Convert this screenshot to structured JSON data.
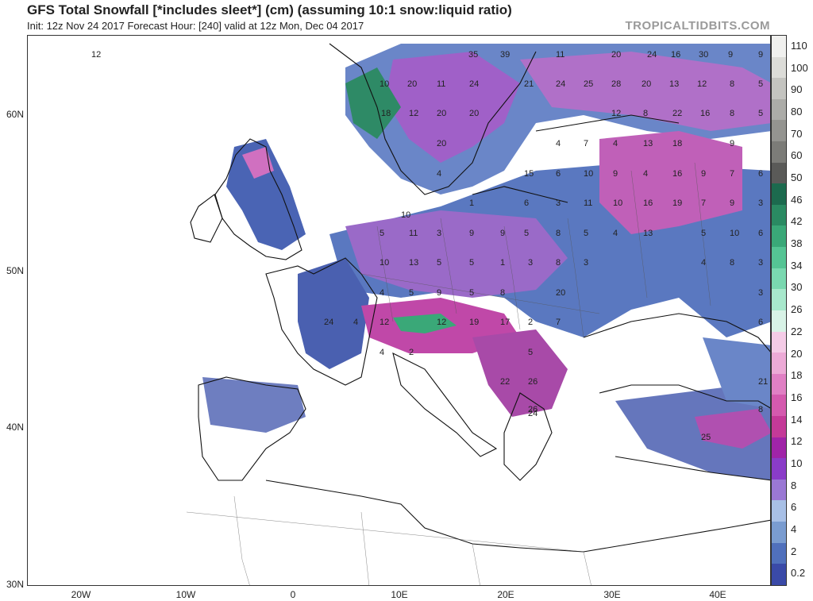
{
  "header": {
    "title": "GFS Total Snowfall [*includes sleet*] (cm) (assuming 10:1 snow:liquid ratio)",
    "subtitle": "Init: 12z Nov 24 2017   Forecast Hour: [240]   valid at 12z Mon, Dec 04 2017",
    "brand": "TROPICALTIDBITS.COM"
  },
  "axes": {
    "lat_labels": [
      "60N",
      "50N",
      "40N",
      "30N"
    ],
    "lon_labels": [
      "20W",
      "10W",
      "0",
      "10E",
      "20E",
      "30E",
      "40E"
    ]
  },
  "colorbar": {
    "labels": [
      "110",
      "100",
      "90",
      "80",
      "70",
      "60",
      "50",
      "46",
      "42",
      "38",
      "34",
      "30",
      "26",
      "22",
      "20",
      "18",
      "16",
      "14",
      "12",
      "10",
      "8",
      "6",
      "4",
      "2",
      "0.2"
    ],
    "colors": [
      "#f0f0ee",
      "#dcdcd8",
      "#c4c4c0",
      "#acaca8",
      "#949490",
      "#7c7c78",
      "#5a5a58",
      "#1c6a4e",
      "#2a8a62",
      "#3aa878",
      "#55c494",
      "#7ad8b0",
      "#a8e8cc",
      "#d8f2e6",
      "#f4cbe6",
      "#ecaad6",
      "#e080c4",
      "#d45aae",
      "#c43a98",
      "#a024a8",
      "#8a3cc8",
      "#9a78d4",
      "#a8c0e6",
      "#7a9cd0",
      "#5070bc",
      "#3a4aa8"
    ]
  },
  "map_values": [
    {
      "v": "12"
    },
    {
      "v": "35"
    },
    {
      "v": "39"
    },
    {
      "v": "11"
    },
    {
      "v": "20"
    },
    {
      "v": "24"
    },
    {
      "v": "16"
    },
    {
      "v": "30"
    },
    {
      "v": "9"
    },
    {
      "v": "9"
    },
    {
      "v": "10"
    },
    {
      "v": "20"
    },
    {
      "v": "11"
    },
    {
      "v": "24"
    },
    {
      "v": "21"
    },
    {
      "v": "24"
    },
    {
      "v": "25"
    },
    {
      "v": "28"
    },
    {
      "v": "20"
    },
    {
      "v": "13"
    },
    {
      "v": "12"
    },
    {
      "v": "8"
    },
    {
      "v": "5"
    },
    {
      "v": "18"
    },
    {
      "v": "12"
    },
    {
      "v": "20"
    },
    {
      "v": "20"
    },
    {
      "v": "12"
    },
    {
      "v": "8"
    },
    {
      "v": "22"
    },
    {
      "v": "16"
    },
    {
      "v": "8"
    },
    {
      "v": "5"
    },
    {
      "v": "20"
    },
    {
      "v": "4"
    },
    {
      "v": "7"
    },
    {
      "v": "4"
    },
    {
      "v": "13"
    },
    {
      "v": "18"
    },
    {
      "v": "9"
    },
    {
      "v": "4"
    },
    {
      "v": "15"
    },
    {
      "v": "6"
    },
    {
      "v": "10"
    },
    {
      "v": "9"
    },
    {
      "v": "4"
    },
    {
      "v": "16"
    },
    {
      "v": "9"
    },
    {
      "v": "7"
    },
    {
      "v": "6"
    },
    {
      "v": "1"
    },
    {
      "v": "6"
    },
    {
      "v": "3"
    },
    {
      "v": "11"
    },
    {
      "v": "10"
    },
    {
      "v": "16"
    },
    {
      "v": "19"
    },
    {
      "v": "7"
    },
    {
      "v": "9"
    },
    {
      "v": "3"
    },
    {
      "v": "5"
    },
    {
      "v": "11"
    },
    {
      "v": "3"
    },
    {
      "v": "9"
    },
    {
      "v": "9"
    },
    {
      "v": "5"
    },
    {
      "v": "8"
    },
    {
      "v": "5"
    },
    {
      "v": "4"
    },
    {
      "v": "13"
    },
    {
      "v": "5"
    },
    {
      "v": "10"
    },
    {
      "v": "6"
    },
    {
      "v": "10"
    },
    {
      "v": "13"
    },
    {
      "v": "5"
    },
    {
      "v": "5"
    },
    {
      "v": "1"
    },
    {
      "v": "3"
    },
    {
      "v": "8"
    },
    {
      "v": "3"
    },
    {
      "v": "4"
    },
    {
      "v": "8"
    },
    {
      "v": "3"
    },
    {
      "v": "4"
    },
    {
      "v": "5"
    },
    {
      "v": "9"
    },
    {
      "v": "5"
    },
    {
      "v": "8"
    },
    {
      "v": "20"
    },
    {
      "v": "3"
    },
    {
      "v": "24"
    },
    {
      "v": "4"
    },
    {
      "v": "12"
    },
    {
      "v": "12"
    },
    {
      "v": "19"
    },
    {
      "v": "17"
    },
    {
      "v": "2"
    },
    {
      "v": "7"
    },
    {
      "v": "6"
    },
    {
      "v": "4"
    },
    {
      "v": "2"
    },
    {
      "v": "5"
    },
    {
      "v": "22"
    },
    {
      "v": "26"
    },
    {
      "v": "26"
    },
    {
      "v": "21"
    },
    {
      "v": "8"
    },
    {
      "v": "24"
    },
    {
      "v": "25"
    },
    {
      "v": "10"
    }
  ]
}
